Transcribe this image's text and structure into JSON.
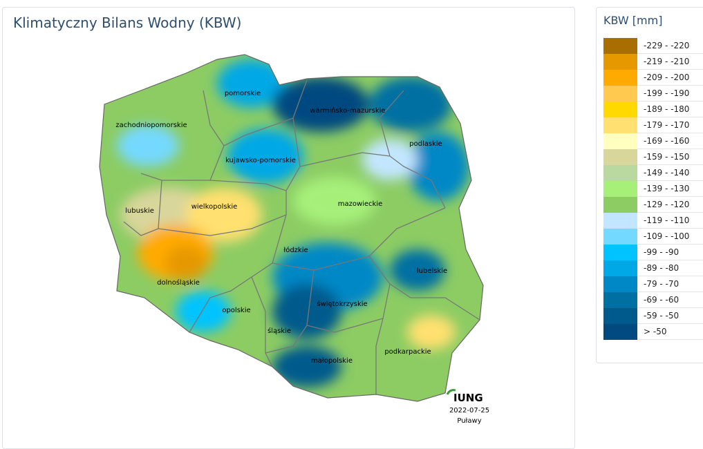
{
  "header": {
    "title": "Klimatyczny Bilans Wodny (KBW)"
  },
  "map": {
    "regions": [
      {
        "label": "pomorskie"
      },
      {
        "label": "warmińsko-mazurskie"
      },
      {
        "label": "podlaskie"
      },
      {
        "label": "zachodniopomorskie"
      },
      {
        "label": "kujawsko-pomorskie"
      },
      {
        "label": "wielkopolskie"
      },
      {
        "label": "lubuskie"
      },
      {
        "label": "mazowieckie"
      },
      {
        "label": "łódzkie"
      },
      {
        "label": "lubelskie"
      },
      {
        "label": "dolnośląskie"
      },
      {
        "label": "opolskie"
      },
      {
        "label": "świętokrzyskie"
      },
      {
        "label": "śląskie"
      },
      {
        "label": "małopolskie"
      },
      {
        "label": "podkarpackie"
      }
    ],
    "logo": "IUNG",
    "date": "2022-07-25",
    "place": "Puławy"
  },
  "legend": {
    "title": "KBW [mm]",
    "items": [
      {
        "label": "-229 - -220",
        "color": "#a86f00"
      },
      {
        "label": "-219 - -210",
        "color": "#e69800"
      },
      {
        "label": "-209 - -200",
        "color": "#ffaa00"
      },
      {
        "label": "-199 - -190",
        "color": "#ffc84f"
      },
      {
        "label": "-189 - -180",
        "color": "#ffd900"
      },
      {
        "label": "-179 - -170",
        "color": "#ffe070"
      },
      {
        "label": "-169 - -160",
        "color": "#ffffc0"
      },
      {
        "label": "-159 - -150",
        "color": "#d9d69b"
      },
      {
        "label": "-149 - -140",
        "color": "#b9d9a0"
      },
      {
        "label": "-139 - -130",
        "color": "#a6f07a"
      },
      {
        "label": "-129 - -120",
        "color": "#8ccc63"
      },
      {
        "label": "-119 - -110",
        "color": "#c2e6ff"
      },
      {
        "label": "-109 - -100",
        "color": "#74d9ff"
      },
      {
        "label": "-99 - -90",
        "color": "#00c3ff"
      },
      {
        "label": "-89 - -80",
        "color": "#00a8e6"
      },
      {
        "label": "-79 - -70",
        "color": "#0088c6"
      },
      {
        "label": "-69 - -60",
        "color": "#0070a3"
      },
      {
        "label": "-59 - -50",
        "color": "#005a8c"
      },
      {
        "label": "> -50",
        "color": "#004a80"
      }
    ]
  }
}
